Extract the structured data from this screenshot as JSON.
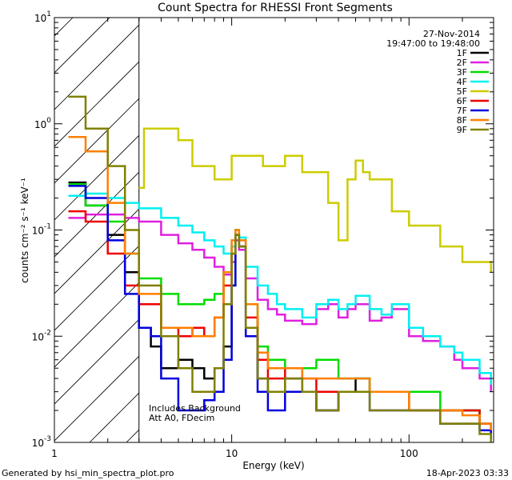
{
  "chart_data": {
    "type": "line",
    "title": "Count Spectra for RHESSI Front Segments",
    "xlabel": "Energy (keV)",
    "ylabel": "counts cm⁻² s⁻¹ keV⁻¹",
    "xscale": "log",
    "yscale": "log",
    "xlim": [
      1,
      300
    ],
    "ylim": [
      0.001,
      10
    ],
    "x_ticks": [
      {
        "value": 1,
        "label": "1"
      },
      {
        "value": 10,
        "label": "10"
      },
      {
        "value": 100,
        "label": "100"
      }
    ],
    "y_ticks": [
      {
        "value": 10,
        "base": "10",
        "exp": "1"
      },
      {
        "value": 1,
        "base": "10",
        "exp": "0"
      },
      {
        "value": 0.1,
        "base": "10",
        "exp": "-1"
      },
      {
        "value": 0.01,
        "base": "10",
        "exp": "-2"
      },
      {
        "value": 0.001,
        "base": "10",
        "exp": "-3"
      }
    ],
    "shaded_region_kev": [
      1,
      3
    ],
    "date": "27-Nov-2014",
    "time_range": "19:47:00 to 19:48:00",
    "annotation_lines": [
      "Includes Background",
      "Att A0, FDecim"
    ],
    "legend_position": "top-right",
    "series": [
      {
        "name": "1F",
        "color": "#000000",
        "points": [
          [
            1.2,
            0.28
          ],
          [
            1.5,
            0.17
          ],
          [
            2.0,
            0.09
          ],
          [
            2.5,
            0.04
          ],
          [
            3.0,
            0.012
          ],
          [
            3.5,
            0.008
          ],
          [
            4.0,
            0.005
          ],
          [
            5.0,
            0.006
          ],
          [
            6.0,
            0.005
          ],
          [
            7.0,
            0.004
          ],
          [
            8.0,
            0.005
          ],
          [
            9.0,
            0.008
          ],
          [
            10.0,
            0.03
          ],
          [
            10.5,
            0.09
          ],
          [
            11.0,
            0.07
          ],
          [
            12.0,
            0.012
          ],
          [
            14.0,
            0.004
          ],
          [
            16.0,
            0.003
          ],
          [
            20.0,
            0.004
          ],
          [
            25.0,
            0.003
          ],
          [
            30.0,
            0.002
          ],
          [
            40.0,
            0.003
          ],
          [
            50.0,
            0.004
          ],
          [
            60.0,
            0.003
          ],
          [
            80.0,
            0.003
          ],
          [
            100.0,
            0.002
          ],
          [
            150.0,
            0.002
          ],
          [
            200.0,
            0.002
          ],
          [
            250.0,
            0.0015
          ],
          [
            290.0,
            0.0012
          ]
        ]
      },
      {
        "name": "2F",
        "color": "#e020e0",
        "points": [
          [
            1.2,
            0.13
          ],
          [
            1.5,
            0.14
          ],
          [
            2.0,
            0.14
          ],
          [
            2.5,
            0.13
          ],
          [
            3.0,
            0.12
          ],
          [
            4.0,
            0.09
          ],
          [
            5.0,
            0.075
          ],
          [
            6.0,
            0.065
          ],
          [
            7.0,
            0.055
          ],
          [
            8.0,
            0.045
          ],
          [
            9.0,
            0.038
          ],
          [
            10.0,
            0.05
          ],
          [
            10.5,
            0.08
          ],
          [
            11.0,
            0.065
          ],
          [
            12.0,
            0.035
          ],
          [
            14.0,
            0.022
          ],
          [
            16.0,
            0.018
          ],
          [
            18.0,
            0.016
          ],
          [
            20.0,
            0.014
          ],
          [
            25.0,
            0.013
          ],
          [
            30.0,
            0.018
          ],
          [
            35.0,
            0.02
          ],
          [
            40.0,
            0.015
          ],
          [
            45.0,
            0.018
          ],
          [
            50.0,
            0.02
          ],
          [
            60.0,
            0.014
          ],
          [
            70.0,
            0.015
          ],
          [
            80.0,
            0.018
          ],
          [
            100.0,
            0.01
          ],
          [
            120.0,
            0.009
          ],
          [
            150.0,
            0.008
          ],
          [
            180.0,
            0.006
          ],
          [
            200.0,
            0.005
          ],
          [
            250.0,
            0.004
          ],
          [
            290.0,
            0.003
          ]
        ]
      },
      {
        "name": "3F",
        "color": "#00dd00",
        "points": [
          [
            1.2,
            0.27
          ],
          [
            1.5,
            0.17
          ],
          [
            2.0,
            0.12
          ],
          [
            2.5,
            0.06
          ],
          [
            3.0,
            0.035
          ],
          [
            4.0,
            0.025
          ],
          [
            5.0,
            0.02
          ],
          [
            6.0,
            0.02
          ],
          [
            7.0,
            0.022
          ],
          [
            8.0,
            0.025
          ],
          [
            9.0,
            0.04
          ],
          [
            10.0,
            0.07
          ],
          [
            10.5,
            0.1
          ],
          [
            11.0,
            0.08
          ],
          [
            12.0,
            0.02
          ],
          [
            14.0,
            0.008
          ],
          [
            16.0,
            0.006
          ],
          [
            20.0,
            0.005
          ],
          [
            25.0,
            0.005
          ],
          [
            30.0,
            0.006
          ],
          [
            40.0,
            0.004
          ],
          [
            50.0,
            0.004
          ],
          [
            60.0,
            0.003
          ],
          [
            80.0,
            0.003
          ],
          [
            100.0,
            0.003
          ],
          [
            150.0,
            0.002
          ],
          [
            200.0,
            0.002
          ],
          [
            250.0,
            0.0015
          ],
          [
            290.0,
            0.0012
          ]
        ]
      },
      {
        "name": "4F",
        "color": "#00f0f0",
        "points": [
          [
            1.2,
            0.21
          ],
          [
            1.5,
            0.22
          ],
          [
            2.0,
            0.2
          ],
          [
            2.5,
            0.18
          ],
          [
            3.0,
            0.16
          ],
          [
            4.0,
            0.13
          ],
          [
            5.0,
            0.11
          ],
          [
            6.0,
            0.095
          ],
          [
            7.0,
            0.08
          ],
          [
            8.0,
            0.07
          ],
          [
            9.0,
            0.06
          ],
          [
            10.0,
            0.07
          ],
          [
            10.5,
            0.1
          ],
          [
            11.0,
            0.085
          ],
          [
            12.0,
            0.045
          ],
          [
            14.0,
            0.03
          ],
          [
            16.0,
            0.025
          ],
          [
            18.0,
            0.02
          ],
          [
            20.0,
            0.018
          ],
          [
            25.0,
            0.015
          ],
          [
            30.0,
            0.02
          ],
          [
            35.0,
            0.022
          ],
          [
            40.0,
            0.018
          ],
          [
            45.0,
            0.02
          ],
          [
            50.0,
            0.024
          ],
          [
            60.0,
            0.018
          ],
          [
            70.0,
            0.016
          ],
          [
            80.0,
            0.02
          ],
          [
            100.0,
            0.012
          ],
          [
            120.0,
            0.01
          ],
          [
            150.0,
            0.008
          ],
          [
            180.0,
            0.007
          ],
          [
            200.0,
            0.006
          ],
          [
            250.0,
            0.0045
          ],
          [
            290.0,
            0.0035
          ]
        ]
      },
      {
        "name": "5F",
        "color": "#cccc00",
        "points": [
          [
            3.0,
            0.25
          ],
          [
            3.2,
            0.9
          ],
          [
            5.0,
            0.7
          ],
          [
            6.0,
            0.4
          ],
          [
            8.0,
            0.3
          ],
          [
            10.0,
            0.5
          ],
          [
            15.0,
            0.4
          ],
          [
            20.0,
            0.5
          ],
          [
            25.0,
            0.35
          ],
          [
            35.0,
            0.18
          ],
          [
            40.0,
            0.08
          ],
          [
            45.0,
            0.3
          ],
          [
            50.0,
            0.45
          ],
          [
            55.0,
            0.35
          ],
          [
            60.0,
            0.3
          ],
          [
            80.0,
            0.15
          ],
          [
            100.0,
            0.11
          ],
          [
            150.0,
            0.07
          ],
          [
            200.0,
            0.05
          ],
          [
            290.0,
            0.04
          ]
        ]
      },
      {
        "name": "6F",
        "color": "#ee0000",
        "points": [
          [
            1.2,
            0.15
          ],
          [
            1.5,
            0.12
          ],
          [
            2.0,
            0.06
          ],
          [
            2.5,
            0.03
          ],
          [
            3.0,
            0.02
          ],
          [
            4.0,
            0.012
          ],
          [
            5.0,
            0.01
          ],
          [
            6.0,
            0.012
          ],
          [
            7.0,
            0.01
          ],
          [
            8.0,
            0.015
          ],
          [
            9.0,
            0.03
          ],
          [
            10.0,
            0.06
          ],
          [
            10.5,
            0.09
          ],
          [
            11.0,
            0.07
          ],
          [
            12.0,
            0.015
          ],
          [
            14.0,
            0.006
          ],
          [
            16.0,
            0.004
          ],
          [
            20.0,
            0.005
          ],
          [
            25.0,
            0.004
          ],
          [
            30.0,
            0.003
          ],
          [
            40.0,
            0.003
          ],
          [
            50.0,
            0.003
          ],
          [
            60.0,
            0.003
          ],
          [
            80.0,
            0.003
          ],
          [
            100.0,
            0.002
          ],
          [
            150.0,
            0.002
          ],
          [
            200.0,
            0.002
          ],
          [
            250.0,
            0.0015
          ],
          [
            290.0,
            0.0012
          ]
        ]
      },
      {
        "name": "7F",
        "color": "#0000dd",
        "points": [
          [
            1.2,
            0.26
          ],
          [
            1.5,
            0.2
          ],
          [
            2.0,
            0.08
          ],
          [
            2.5,
            0.025
          ],
          [
            3.0,
            0.012
          ],
          [
            3.5,
            0.01
          ],
          [
            4.0,
            0.004
          ],
          [
            5.0,
            0.002
          ],
          [
            6.0,
            0.002
          ],
          [
            7.0,
            0.0025
          ],
          [
            8.0,
            0.003
          ],
          [
            9.0,
            0.006
          ],
          [
            10.0,
            0.03
          ],
          [
            10.5,
            0.09
          ],
          [
            11.0,
            0.07
          ],
          [
            12.0,
            0.01
          ],
          [
            14.0,
            0.003
          ],
          [
            16.0,
            0.002
          ],
          [
            20.0,
            0.003
          ],
          [
            25.0,
            0.003
          ],
          [
            30.0,
            0.002
          ],
          [
            40.0,
            0.003
          ],
          [
            50.0,
            0.003
          ],
          [
            60.0,
            0.002
          ],
          [
            80.0,
            0.002
          ],
          [
            100.0,
            0.002
          ],
          [
            150.0,
            0.0015
          ],
          [
            200.0,
            0.0015
          ],
          [
            250.0,
            0.0013
          ],
          [
            290.0,
            0.0011
          ]
        ]
      },
      {
        "name": "8F",
        "color": "#ff7f00",
        "points": [
          [
            1.2,
            0.75
          ],
          [
            1.5,
            0.55
          ],
          [
            2.0,
            0.18
          ],
          [
            2.5,
            0.06
          ],
          [
            3.0,
            0.025
          ],
          [
            4.0,
            0.012
          ],
          [
            5.0,
            0.012
          ],
          [
            6.0,
            0.01
          ],
          [
            7.0,
            0.01
          ],
          [
            8.0,
            0.015
          ],
          [
            9.0,
            0.04
          ],
          [
            10.0,
            0.08
          ],
          [
            10.5,
            0.1
          ],
          [
            11.0,
            0.08
          ],
          [
            12.0,
            0.02
          ],
          [
            14.0,
            0.007
          ],
          [
            16.0,
            0.005
          ],
          [
            20.0,
            0.005
          ],
          [
            25.0,
            0.004
          ],
          [
            30.0,
            0.004
          ],
          [
            40.0,
            0.004
          ],
          [
            50.0,
            0.004
          ],
          [
            60.0,
            0.003
          ],
          [
            80.0,
            0.003
          ],
          [
            100.0,
            0.002
          ],
          [
            150.0,
            0.002
          ],
          [
            200.0,
            0.0018
          ],
          [
            250.0,
            0.0015
          ],
          [
            290.0,
            0.0013
          ]
        ]
      },
      {
        "name": "9F",
        "color": "#808000",
        "points": [
          [
            1.2,
            1.8
          ],
          [
            1.5,
            0.9
          ],
          [
            2.0,
            0.4
          ],
          [
            2.5,
            0.1
          ],
          [
            3.0,
            0.03
          ],
          [
            4.0,
            0.01
          ],
          [
            5.0,
            0.005
          ],
          [
            6.0,
            0.003
          ],
          [
            7.0,
            0.003
          ],
          [
            8.0,
            0.005
          ],
          [
            9.0,
            0.02
          ],
          [
            10.0,
            0.06
          ],
          [
            10.5,
            0.09
          ],
          [
            11.0,
            0.07
          ],
          [
            12.0,
            0.012
          ],
          [
            14.0,
            0.004
          ],
          [
            16.0,
            0.003
          ],
          [
            20.0,
            0.004
          ],
          [
            25.0,
            0.003
          ],
          [
            30.0,
            0.002
          ],
          [
            40.0,
            0.003
          ],
          [
            50.0,
            0.003
          ],
          [
            60.0,
            0.002
          ],
          [
            80.0,
            0.002
          ],
          [
            100.0,
            0.002
          ],
          [
            150.0,
            0.0015
          ],
          [
            200.0,
            0.0015
          ],
          [
            250.0,
            0.0012
          ],
          [
            290.0,
            0.001
          ]
        ]
      }
    ]
  },
  "footer": {
    "left": "Generated by hsi_min_spectra_plot.pro",
    "right": "18-Apr-2023 03:33"
  }
}
